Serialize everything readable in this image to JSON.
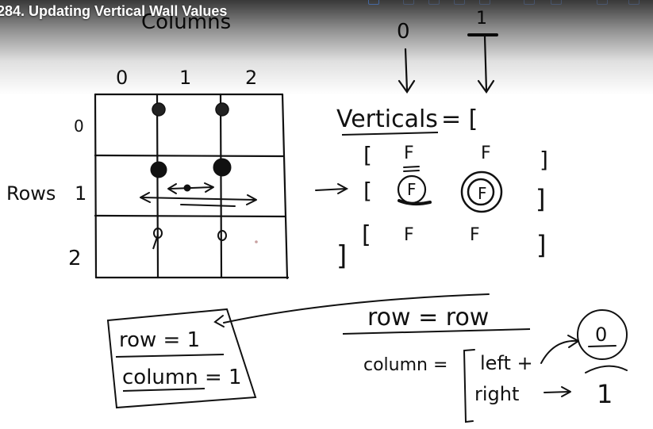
{
  "video": {
    "title": "284. Updating Vertical Wall Values"
  },
  "toolbar": {
    "icons": [
      "pen-tool-icon",
      "marker-tool-icon",
      "eraser-tool-icon",
      "shape-tool-icon",
      "color-tool-icon",
      "undo-icon",
      "redo-icon",
      "page-icon",
      "settings-icon"
    ]
  },
  "whiteboard": {
    "columns_heading": "Columns",
    "rows_heading": "Rows",
    "column_indices": [
      "0",
      "1",
      "2"
    ],
    "row_indices": [
      "0",
      "1",
      "2"
    ],
    "top_index_zero": "0",
    "top_index_one": "1",
    "verticals_label": "Verticals",
    "verticals_equals": "= [",
    "vertical_rows": [
      {
        "open": "[",
        "values": [
          "F",
          "F"
        ],
        "close": "]"
      },
      {
        "open": "[",
        "values": [
          "F",
          "F"
        ],
        "close": "]"
      },
      {
        "open": "[",
        "values": [
          "F",
          "F"
        ],
        "close": "]"
      }
    ],
    "closing_bracket": "]",
    "arrow_glyph": "→",
    "row_assignment": "row = row",
    "column_assignment": "column =",
    "left_label": "left +",
    "right_label": "right",
    "left_result": "0",
    "right_result": "1",
    "current_row": "row = 1",
    "current_column": "column = 1"
  },
  "colors": {
    "ink": "#111111",
    "background": "#ffffff",
    "title_text": "#ffffff"
  }
}
